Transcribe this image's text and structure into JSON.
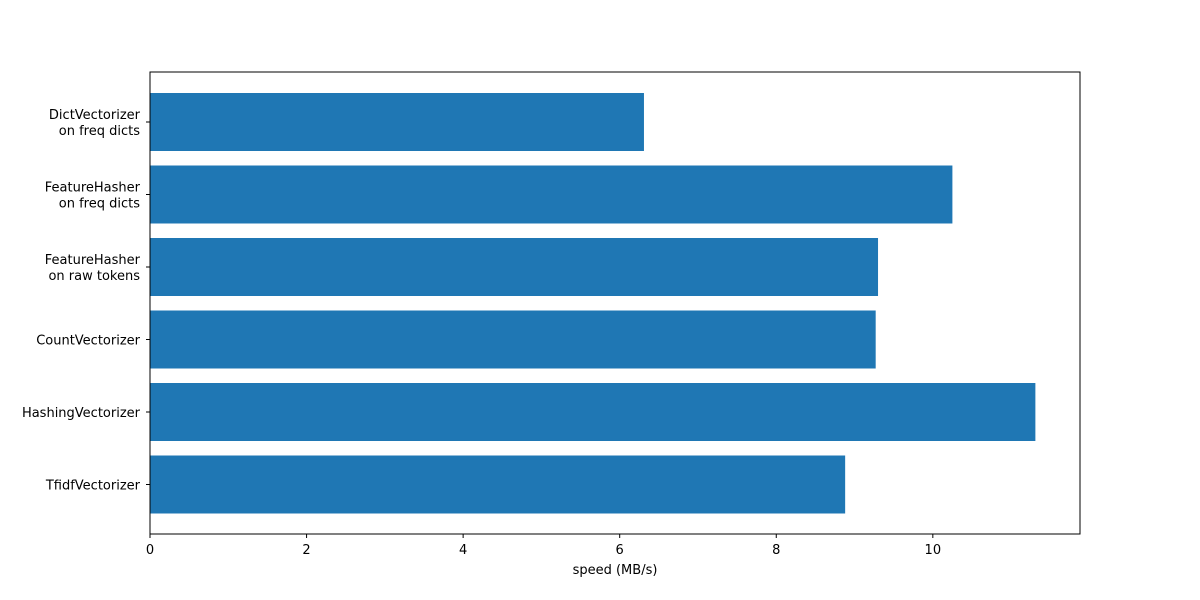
{
  "chart_data": {
    "type": "bar",
    "orientation": "horizontal",
    "title": "",
    "xlabel": "speed (MB/s)",
    "ylabel": "",
    "categories": [
      [
        "DictVectorizer",
        "on freq dicts"
      ],
      [
        "FeatureHasher",
        "on freq dicts"
      ],
      [
        "FeatureHasher",
        "on raw tokens"
      ],
      [
        "CountVectorizer"
      ],
      [
        "HashingVectorizer"
      ],
      [
        "TfidfVectorizer"
      ]
    ],
    "values": [
      6.31,
      10.25,
      9.3,
      9.27,
      11.31,
      8.88
    ],
    "xlim": [
      0,
      11.88
    ],
    "xticks": [
      0,
      2,
      4,
      6,
      8,
      10
    ],
    "bar_color": "#1f77b4",
    "grid": false,
    "legend": "none"
  }
}
